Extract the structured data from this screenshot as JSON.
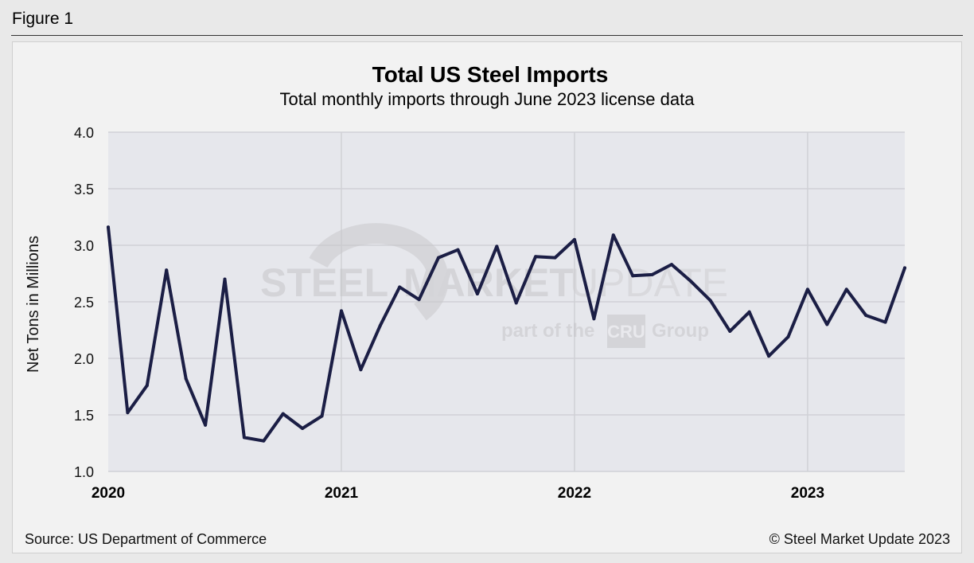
{
  "figure_label": "Figure 1",
  "source": "Source: US Department of Commerce",
  "copyright": "© Steel Market Update 2023",
  "watermark": {
    "brand_a": "STEEL",
    "brand_b": "MARKET",
    "brand_c": "UPDATE",
    "tagline_pre": "part of the",
    "logo": "CRU",
    "tagline_post": "Group"
  },
  "colors": {
    "line": "#1b1e45",
    "plot_bg": "#e6e7ec",
    "grid": "#d0d1d6"
  },
  "chart_data": {
    "type": "line",
    "title": "Total US Steel Imports",
    "subtitle": "Total monthly imports through June 2023 license data",
    "ylabel": "Net Tons in Millions",
    "xlabel": "",
    "ylim": [
      1.0,
      4.0
    ],
    "yticks": [
      "1.0",
      "1.5",
      "2.0",
      "2.5",
      "3.0",
      "3.5",
      "4.0"
    ],
    "year_labels": [
      "2020",
      "2021",
      "2022",
      "2023"
    ],
    "grid": true,
    "legend": "none",
    "x": [
      "Jan 2020",
      "Feb 2020",
      "Mar 2020",
      "Apr 2020",
      "May 2020",
      "Jun 2020",
      "Jul 2020",
      "Aug 2020",
      "Sep 2020",
      "Oct 2020",
      "Nov 2020",
      "Dec 2020",
      "Jan 2021",
      "Feb 2021",
      "Mar 2021",
      "Apr 2021",
      "May 2021",
      "Jun 2021",
      "Jul 2021",
      "Aug 2021",
      "Sep 2021",
      "Oct 2021",
      "Nov 2021",
      "Dec 2021",
      "Jan 2022",
      "Feb 2022",
      "Mar 2022",
      "Apr 2022",
      "May 2022",
      "Jun 2022",
      "Jul 2022",
      "Aug 2022",
      "Sep 2022",
      "Oct 2022",
      "Nov 2022",
      "Dec 2022",
      "Jan 2023",
      "Feb 2023",
      "Mar 2023",
      "Apr 2023",
      "May 2023",
      "Jun 2023"
    ],
    "series": [
      {
        "values": [
          3.16,
          1.52,
          1.76,
          2.78,
          1.82,
          1.41,
          2.7,
          1.3,
          1.27,
          1.51,
          1.38,
          1.49,
          2.42,
          1.9,
          2.29,
          2.63,
          2.52,
          2.89,
          2.96,
          2.57,
          2.99,
          2.49,
          2.9,
          2.89,
          3.05,
          2.35,
          3.09,
          2.73,
          2.74,
          2.83,
          2.68,
          2.51,
          2.24,
          2.41,
          2.02,
          2.19,
          2.61,
          2.3,
          2.61,
          2.38,
          2.32,
          2.8
        ]
      }
    ]
  }
}
